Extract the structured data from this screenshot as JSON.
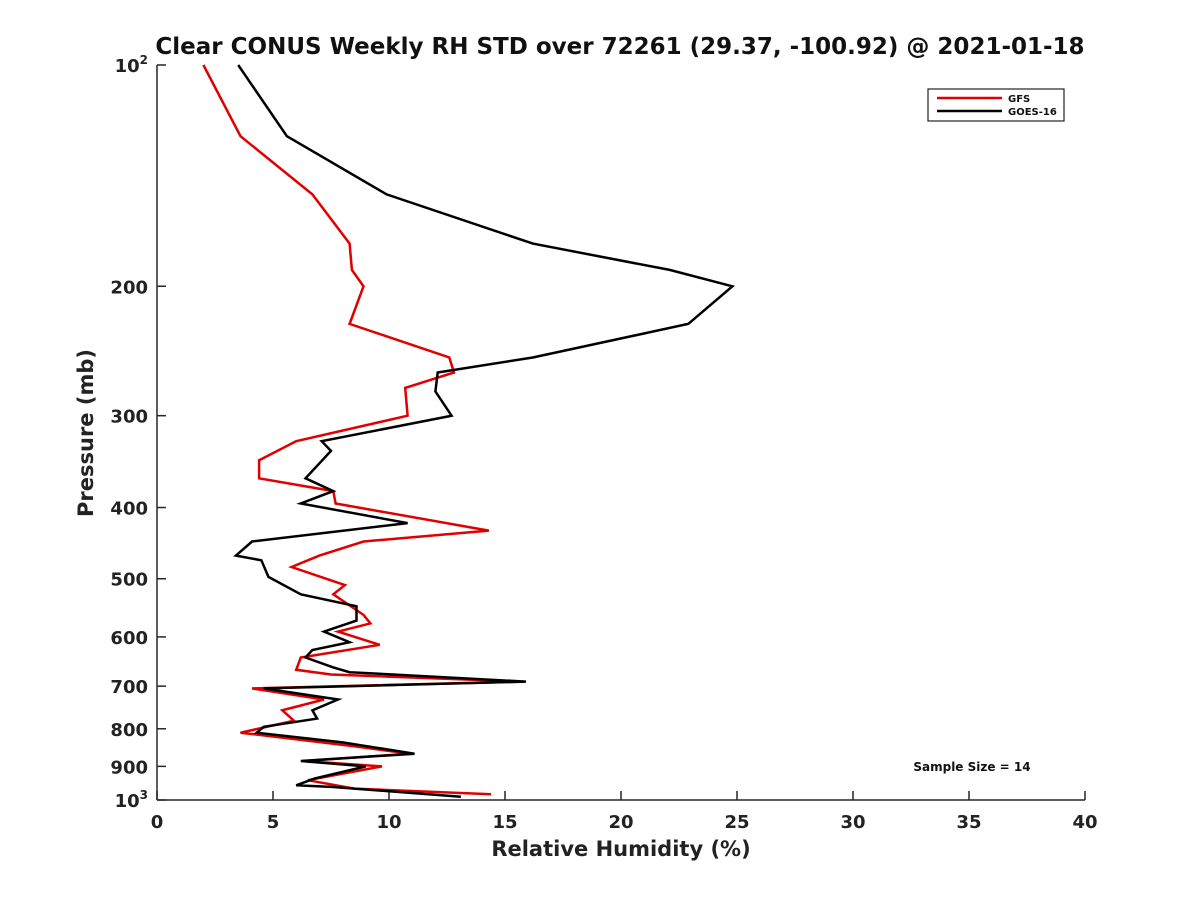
{
  "chart_data": {
    "type": "line",
    "title": "Clear CONUS Weekly RH STD over 72261 (29.37, -100.92) @ 2021-01-18",
    "xlabel": "Relative Humidity (%)",
    "ylabel": "Pressure (mb)",
    "xlim": [
      0,
      40
    ],
    "ylim": [
      100,
      1000
    ],
    "y_scale": "log",
    "y_reversed": true,
    "grid": false,
    "legend_position": "top-right",
    "x_ticks": [
      0,
      5,
      10,
      15,
      20,
      25,
      30,
      35,
      40
    ],
    "x_tick_labels": [
      "0",
      "5",
      "10",
      "15",
      "20",
      "25",
      "30",
      "35",
      "40"
    ],
    "y_ticks": [
      {
        "value": 100,
        "base": "10",
        "sup": "2"
      },
      {
        "value": 200,
        "base": "200",
        "sup": ""
      },
      {
        "value": 300,
        "base": "300",
        "sup": ""
      },
      {
        "value": 400,
        "base": "400",
        "sup": ""
      },
      {
        "value": 500,
        "base": "500",
        "sup": ""
      },
      {
        "value": 600,
        "base": "600",
        "sup": ""
      },
      {
        "value": 700,
        "base": "700",
        "sup": ""
      },
      {
        "value": 800,
        "base": "800",
        "sup": ""
      },
      {
        "value": 900,
        "base": "900",
        "sup": ""
      },
      {
        "value": 1000,
        "base": "10",
        "sup": "3"
      }
    ],
    "annotation": "Sample Size = 14",
    "series": [
      {
        "name": "GFS",
        "color": "#e00000",
        "points": [
          [
            2.0,
            100
          ],
          [
            3.6,
            125
          ],
          [
            6.7,
            150
          ],
          [
            8.3,
            175
          ],
          [
            8.4,
            190
          ],
          [
            8.9,
            200
          ],
          [
            8.3,
            225
          ],
          [
            12.6,
            250
          ],
          [
            12.8,
            262
          ],
          [
            10.7,
            275
          ],
          [
            10.8,
            300
          ],
          [
            6.0,
            325
          ],
          [
            4.4,
            345
          ],
          [
            4.4,
            365
          ],
          [
            7.6,
            380
          ],
          [
            7.7,
            395
          ],
          [
            14.3,
            430
          ],
          [
            8.9,
            445
          ],
          [
            7.0,
            465
          ],
          [
            5.8,
            482
          ],
          [
            8.1,
            510
          ],
          [
            7.6,
            525
          ],
          [
            8.9,
            560
          ],
          [
            9.2,
            575
          ],
          [
            7.8,
            590
          ],
          [
            9.6,
            615
          ],
          [
            6.2,
            640
          ],
          [
            6.0,
            665
          ],
          [
            7.5,
            675
          ],
          [
            15.8,
            690
          ],
          [
            4.1,
            705
          ],
          [
            7.2,
            730
          ],
          [
            5.4,
            755
          ],
          [
            5.9,
            780
          ],
          [
            3.6,
            810
          ],
          [
            8.5,
            845
          ],
          [
            10.9,
            865
          ],
          [
            6.3,
            885
          ],
          [
            9.7,
            900
          ],
          [
            6.5,
            940
          ],
          [
            8.5,
            965
          ],
          [
            14.4,
            982
          ]
        ]
      },
      {
        "name": "GOES-16",
        "color": "#000000",
        "points": [
          [
            3.5,
            100
          ],
          [
            5.6,
            125
          ],
          [
            9.9,
            150
          ],
          [
            16.2,
            175
          ],
          [
            22.1,
            190
          ],
          [
            24.8,
            200
          ],
          [
            22.9,
            225
          ],
          [
            16.2,
            250
          ],
          [
            12.1,
            262
          ],
          [
            12.0,
            278
          ],
          [
            12.7,
            300
          ],
          [
            7.1,
            325
          ],
          [
            7.5,
            335
          ],
          [
            6.4,
            365
          ],
          [
            7.6,
            380
          ],
          [
            6.2,
            395
          ],
          [
            10.8,
            420
          ],
          [
            4.1,
            445
          ],
          [
            3.4,
            465
          ],
          [
            4.5,
            472
          ],
          [
            4.8,
            497
          ],
          [
            6.2,
            525
          ],
          [
            8.6,
            545
          ],
          [
            8.6,
            570
          ],
          [
            7.2,
            590
          ],
          [
            8.3,
            610
          ],
          [
            6.7,
            625
          ],
          [
            6.4,
            640
          ],
          [
            7.6,
            660
          ],
          [
            8.3,
            670
          ],
          [
            15.9,
            690
          ],
          [
            4.6,
            705
          ],
          [
            7.8,
            730
          ],
          [
            6.7,
            755
          ],
          [
            6.9,
            775
          ],
          [
            4.6,
            795
          ],
          [
            4.3,
            810
          ],
          [
            8.0,
            835
          ],
          [
            11.1,
            865
          ],
          [
            6.2,
            885
          ],
          [
            9.0,
            900
          ],
          [
            6.8,
            935
          ],
          [
            6.6,
            940
          ],
          [
            6.0,
            955
          ],
          [
            7.6,
            960
          ],
          [
            13.1,
            990
          ]
        ]
      }
    ]
  }
}
